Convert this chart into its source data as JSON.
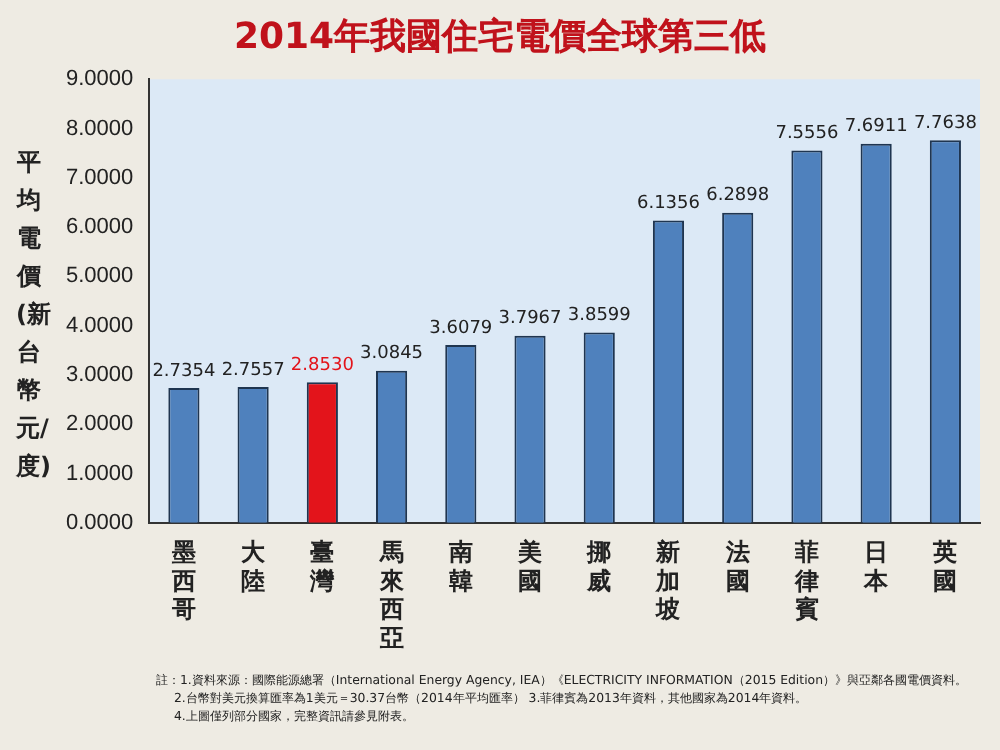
{
  "chart_data": {
    "type": "bar",
    "title": "2014年我國住宅電價全球第三低",
    "ylabel": "平均電價(新台幣元/度)",
    "categories": [
      "墨西哥",
      "大陸",
      "臺灣",
      "馬來西亞",
      "南韓",
      "美國",
      "挪威",
      "新加坡",
      "法國",
      "菲律賓",
      "日本",
      "英國"
    ],
    "values": [
      2.7354,
      2.7557,
      2.853,
      3.0845,
      3.6079,
      3.7967,
      3.8599,
      6.1356,
      6.2898,
      7.5556,
      7.6911,
      7.7638
    ],
    "value_labels": [
      "2.7354",
      "2.7557",
      "2.8530",
      "3.0845",
      "3.6079",
      "3.7967",
      "3.8599",
      "6.1356",
      "6.2898",
      "7.5556",
      "7.6911",
      "7.7638"
    ],
    "colors": [
      "#4f81bd",
      "#4f81bd",
      "#e3141b",
      "#4f81bd",
      "#4f81bd",
      "#4f81bd",
      "#4f81bd",
      "#4f81bd",
      "#4f81bd",
      "#4f81bd",
      "#4f81bd",
      "#4f81bd"
    ],
    "ylim": [
      0,
      9
    ],
    "yticks": [
      {
        "value": 0,
        "label": "0.0000"
      },
      {
        "value": 1,
        "label": "1.0000"
      },
      {
        "value": 2,
        "label": "2.0000"
      },
      {
        "value": 3,
        "label": "3.0000"
      },
      {
        "value": 4,
        "label": "4.0000"
      },
      {
        "value": 5,
        "label": "5.0000"
      },
      {
        "value": 6,
        "label": "6.0000"
      },
      {
        "value": 7,
        "label": "7.0000"
      },
      {
        "value": 8,
        "label": "8.0000"
      },
      {
        "value": 9,
        "label": "9.0000"
      }
    ],
    "grid": false,
    "legend": false,
    "annotations": [
      "註：1.資料來源：國際能源總署（International Energy Agency, IEA）《ELECTRICITY INFORMATION（2015 Edition）》與亞鄰各國電價資料。",
      "2.台幣對美元換算匯率為1美元＝30.37台幣（2014年平均匯率）  3.菲律賓為2013年資料，其他國家為2014年資料。",
      "4.上圖僅列部分國家，完整資訊請參見附表。"
    ]
  }
}
